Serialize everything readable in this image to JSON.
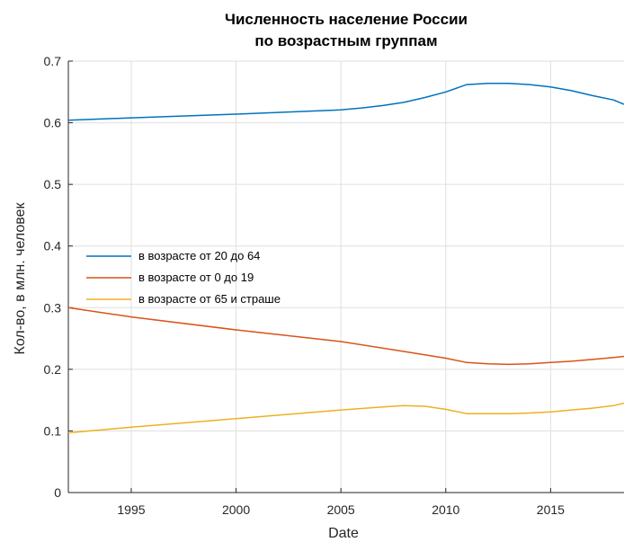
{
  "chart_data": {
    "type": "line",
    "title": [
      "Численность население России",
      "по возрастным группам"
    ],
    "xlabel": "Date",
    "ylabel": "Кол-во, в млн. человек",
    "xlim": [
      1992,
      2018.5
    ],
    "ylim": [
      0,
      0.7
    ],
    "xticks": [
      1995,
      2000,
      2005,
      2010,
      2015
    ],
    "yticks": [
      0,
      0.1,
      0.2,
      0.3,
      0.4,
      0.5,
      0.6,
      0.7
    ],
    "grid": true,
    "legend_position": "middle-left",
    "series": [
      {
        "name": "в возрасте от 20 до 64",
        "color": "#0072BD",
        "x": [
          1992,
          1995,
          2000,
          2005,
          2006,
          2007,
          2008,
          2009,
          2010,
          2011,
          2012,
          2013,
          2014,
          2015,
          2016,
          2017,
          2018,
          2018.5
        ],
        "y": [
          0.604,
          0.608,
          0.614,
          0.621,
          0.624,
          0.628,
          0.633,
          0.641,
          0.65,
          0.662,
          0.664,
          0.664,
          0.662,
          0.658,
          0.652,
          0.644,
          0.637,
          0.63
        ]
      },
      {
        "name": "в возрасте от 0 до 19",
        "color": "#D95319",
        "x": [
          1992,
          1995,
          2000,
          2005,
          2008,
          2010,
          2011,
          2012,
          2013,
          2014,
          2015,
          2016,
          2017,
          2018,
          2018.5
        ],
        "y": [
          0.3,
          0.285,
          0.264,
          0.245,
          0.229,
          0.218,
          0.211,
          0.209,
          0.208,
          0.209,
          0.211,
          0.213,
          0.216,
          0.219,
          0.221
        ]
      },
      {
        "name": "в возрасте от 65 и страше",
        "color": "#EDB120",
        "x": [
          1992,
          1995,
          2000,
          2005,
          2007,
          2008,
          2009,
          2010,
          2011,
          2012,
          2013,
          2014,
          2015,
          2016,
          2017,
          2018,
          2018.5
        ],
        "y": [
          0.097,
          0.106,
          0.12,
          0.134,
          0.139,
          0.141,
          0.14,
          0.135,
          0.128,
          0.128,
          0.128,
          0.129,
          0.131,
          0.134,
          0.137,
          0.141,
          0.145
        ]
      }
    ]
  }
}
